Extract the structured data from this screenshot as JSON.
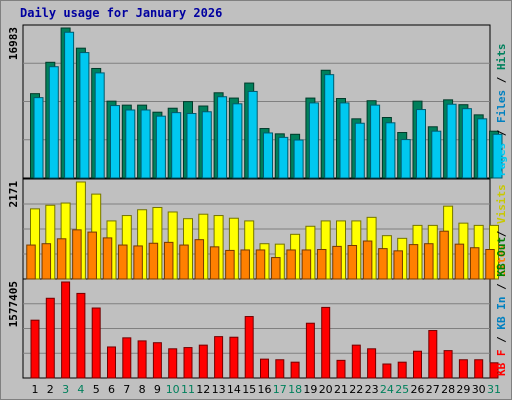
{
  "title": "Daily usage for January 2026",
  "colors": {
    "hits": "#00805c",
    "files": "#00c8f0",
    "sites": "#ff8000",
    "visits": "#ffff00",
    "kbin": "#0080c0",
    "kbout": "#008000",
    "kbf": "#ff0000",
    "weekday_tick": "#000000",
    "weekend_tick": "#00805c"
  },
  "panels": [
    {
      "max_label": "16983",
      "legend": [
        {
          "text": "Hits",
          "color": "#00805c"
        },
        {
          "text": " / ",
          "color": "#000000"
        },
        {
          "text": "Files",
          "color": "#0080c0"
        },
        {
          "text": " / ",
          "color": "#000000"
        },
        {
          "text": "Pages",
          "color": "#00c8f0"
        }
      ]
    },
    {
      "max_label": "2171",
      "legend": [
        {
          "text": "Visits",
          "color": "#c8c800"
        },
        {
          "text": " / ",
          "color": "#000000"
        },
        {
          "text": "Sites",
          "color": "#ff8000"
        }
      ]
    },
    {
      "max_label": "1577405",
      "legend": [
        {
          "text": "KB Out",
          "color": "#008000"
        },
        {
          "text": " / ",
          "color": "#000000"
        },
        {
          "text": "KB In",
          "color": "#0080c0"
        },
        {
          "text": " / ",
          "color": "#000000"
        },
        {
          "text": "KB F",
          "color": "#ff0000"
        }
      ]
    }
  ],
  "chart_data": {
    "type": "bar",
    "categories": [
      "1",
      "2",
      "3",
      "4",
      "5",
      "6",
      "7",
      "8",
      "9",
      "10",
      "11",
      "12",
      "13",
      "14",
      "15",
      "16",
      "17",
      "18",
      "19",
      "20",
      "21",
      "22",
      "23",
      "24",
      "25",
      "26",
      "27",
      "28",
      "29",
      "30",
      "31"
    ],
    "weekend_days": [
      "3",
      "4",
      "10",
      "11",
      "17",
      "18",
      "24",
      "25",
      "31"
    ],
    "series": [
      {
        "name": "Hits",
        "panel": 0,
        "values": [
          9550,
          13100,
          16983,
          14700,
          12400,
          8700,
          8250,
          8250,
          7450,
          7900,
          8650,
          8150,
          9650,
          9050,
          10750,
          5600,
          5000,
          4950,
          9050,
          12200,
          9000,
          6700,
          8750,
          6850,
          5150,
          8700,
          5800,
          8850,
          8300,
          7150,
          5300
        ]
      },
      {
        "name": "Files",
        "panel": 0,
        "values": [
          9100,
          12600,
          16500,
          14200,
          11900,
          8200,
          7700,
          7700,
          7000,
          7400,
          7300,
          7500,
          9200,
          8400,
          9800,
          5100,
          4600,
          4300,
          8500,
          11700,
          8500,
          6200,
          8250,
          6250,
          4350,
          7750,
          5300,
          8350,
          7850,
          6700,
          4950
        ]
      },
      {
        "name": "Visits",
        "panel": 1,
        "values": [
          1570,
          1650,
          1700,
          2171,
          1900,
          1300,
          1420,
          1550,
          1600,
          1500,
          1350,
          1450,
          1420,
          1360,
          1300,
          790,
          780,
          1000,
          1180,
          1300,
          1300,
          1300,
          1380,
          970,
          910,
          1200,
          1200,
          1630,
          1250,
          1200,
          1200
        ]
      },
      {
        "name": "Sites",
        "panel": 1,
        "values": [
          760,
          790,
          900,
          1100,
          1050,
          920,
          760,
          740,
          800,
          820,
          760,
          880,
          720,
          640,
          650,
          650,
          480,
          650,
          650,
          660,
          730,
          750,
          850,
          680,
          630,
          770,
          790,
          1070,
          780,
          700,
          660
        ]
      },
      {
        "name": "KB F",
        "panel": 2,
        "values": [
          950000,
          1310000,
          1577405,
          1390000,
          1150000,
          510000,
          660000,
          610000,
          580000,
          480000,
          500000,
          540000,
          680000,
          670000,
          1010000,
          310000,
          300000,
          260000,
          900000,
          1160000,
          290000,
          540000,
          480000,
          230000,
          260000,
          440000,
          780000,
          450000,
          300000,
          300000,
          250000
        ]
      }
    ]
  }
}
